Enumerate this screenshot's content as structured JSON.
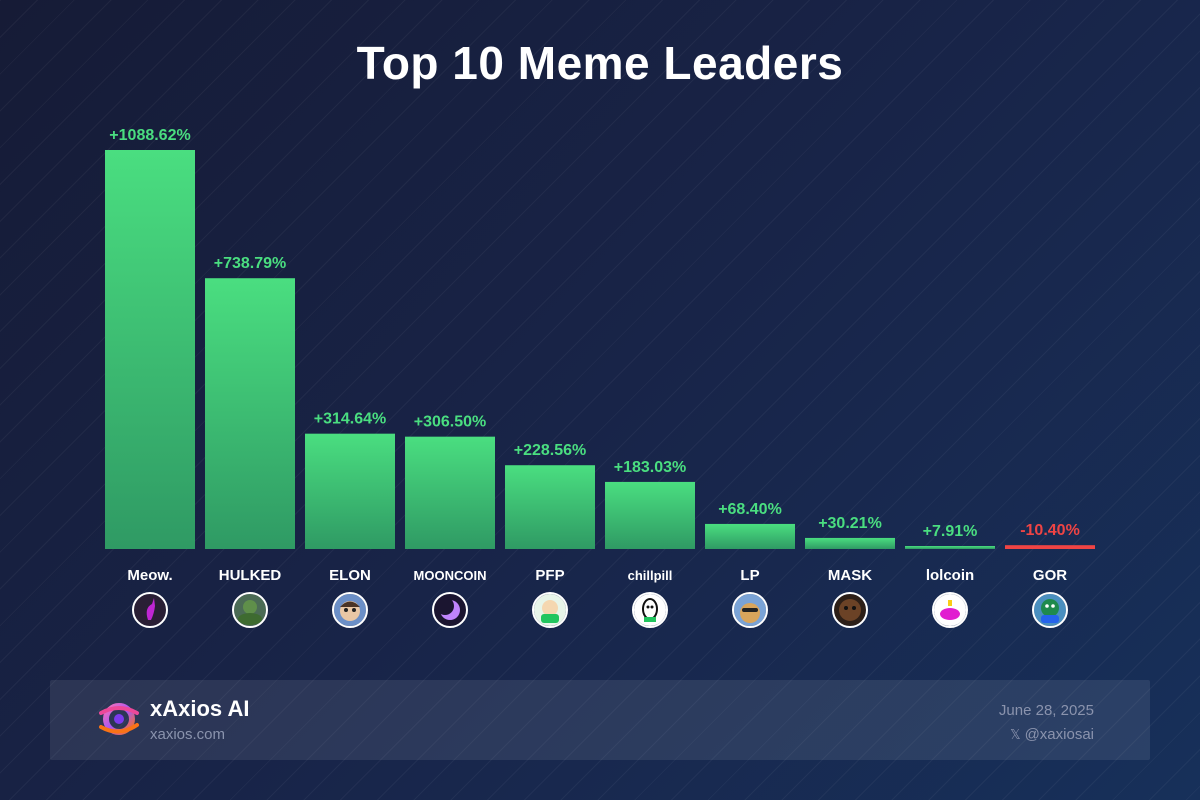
{
  "title": "Top 10 Meme Leaders",
  "colors": {
    "positive": "#4ade80",
    "positive_dark": "#2f9a64",
    "negative": "#ef4444",
    "label": "#ffffff"
  },
  "chart_data": {
    "type": "bar",
    "title": "Top 10 Meme Leaders",
    "categories": [
      "Meow.",
      "HULKED",
      "ELON",
      "MOONCOIN",
      "PFP",
      "chillpill",
      "LP",
      "MASK",
      "lolcoin",
      "GOR"
    ],
    "values": [
      1088.62,
      738.79,
      314.64,
      306.5,
      228.56,
      183.03,
      68.4,
      30.21,
      7.91,
      -10.4
    ],
    "value_labels": [
      "+1088.62%",
      "+738.79%",
      "+314.64%",
      "+306.50%",
      "+228.56%",
      "+183.03%",
      "+68.40%",
      "+30.21%",
      "+7.91%",
      "-10.40%"
    ],
    "icons": [
      "purple-cat-icon",
      "green-hulk-icon",
      "cartoon-elon-icon",
      "crescent-moon-icon",
      "green-pfp-icon",
      "chillpill-face-icon",
      "doge-lp-icon",
      "masked-dog-icon",
      "pink-lolcoin-icon",
      "green-gor-icon"
    ],
    "xlabel": "",
    "ylabel": "",
    "grid": false,
    "legend": "none"
  },
  "footer": {
    "brand_name": "xAxios AI",
    "brand_site": "xaxios.com",
    "logo_icon": "xaxios-logo-icon",
    "date": "June 28, 2025",
    "handle": "@xaxiosai",
    "handle_icon": "x-logo-icon"
  }
}
